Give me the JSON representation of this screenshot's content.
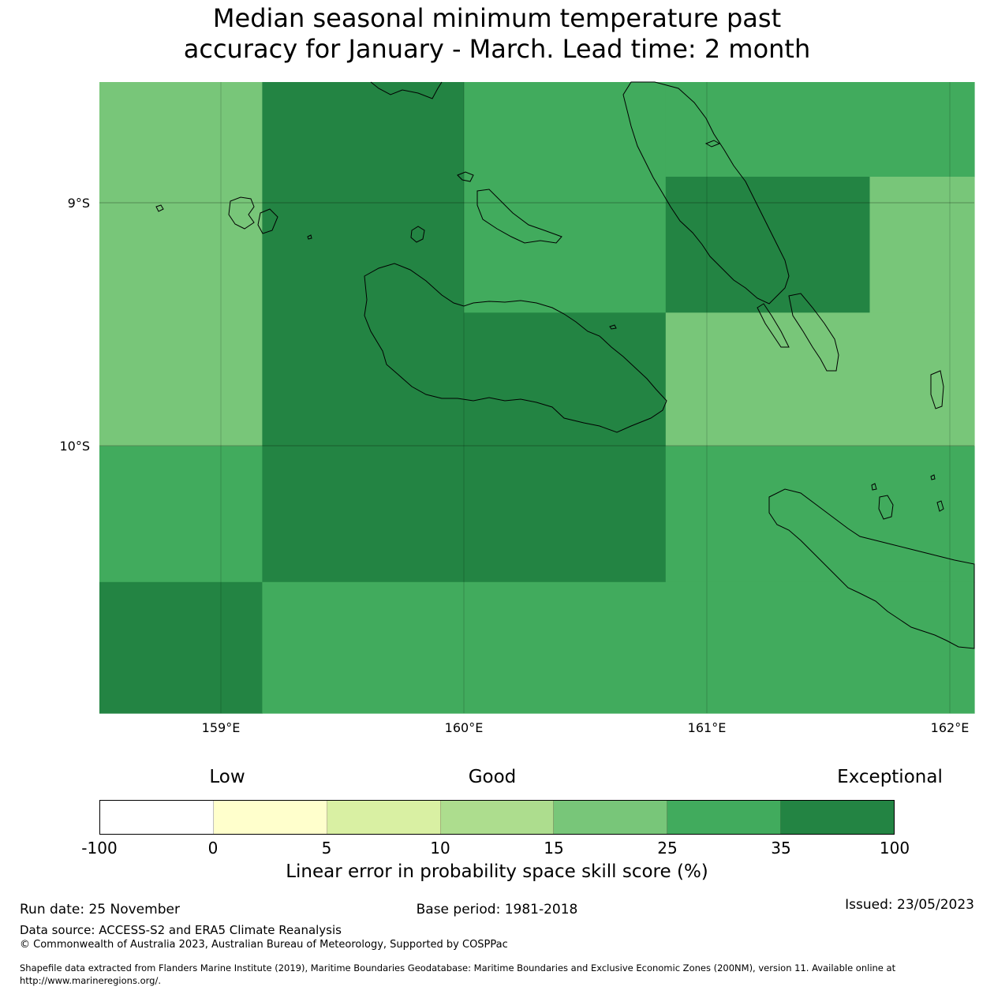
{
  "title": {
    "line1": "Median seasonal minimum temperature past",
    "line2": "accuracy for January - March. Lead time: 2 month"
  },
  "map": {
    "lat_labels": [
      "9°S",
      "10°S"
    ],
    "lon_labels": [
      "159°E",
      "160°E",
      "161°E",
      "162°E"
    ],
    "extent": {
      "lon_min": 158.5,
      "lon_max": 162.1,
      "lat_top": -8.5,
      "lat_bottom": -11.1
    },
    "grid_cells": [
      {
        "lon0": 158.5,
        "lon1": 159.17,
        "lat0": -8.5,
        "lat1": -10.0,
        "category": "15-25"
      },
      {
        "lon0": 159.17,
        "lon1": 160.0,
        "lat0": -8.5,
        "lat1": -10.0,
        "category": "35-100"
      },
      {
        "lon0": 160.0,
        "lon1": 160.83,
        "lat0": -8.5,
        "lat1": -9.45,
        "category": "25-35"
      },
      {
        "lon0": 160.83,
        "lon1": 162.1,
        "lat0": -8.5,
        "lat1": -8.89,
        "category": "25-35"
      },
      {
        "lon0": 160.83,
        "lon1": 161.67,
        "lat0": -8.89,
        "lat1": -9.45,
        "category": "35-100"
      },
      {
        "lon0": 161.67,
        "lon1": 162.1,
        "lat0": -8.89,
        "lat1": -9.45,
        "category": "15-25"
      },
      {
        "lon0": 160.0,
        "lon1": 160.83,
        "lat0": -9.45,
        "lat1": -10.0,
        "category": "35-100"
      },
      {
        "lon0": 160.83,
        "lon1": 162.1,
        "lat0": -9.45,
        "lat1": -10.0,
        "category": "15-25"
      },
      {
        "lon0": 158.5,
        "lon1": 159.17,
        "lat0": -10.0,
        "lat1": -10.56,
        "category": "25-35"
      },
      {
        "lon0": 159.17,
        "lon1": 160.83,
        "lat0": -10.0,
        "lat1": -10.56,
        "category": "35-100"
      },
      {
        "lon0": 160.83,
        "lon1": 162.1,
        "lat0": -10.0,
        "lat1": -10.56,
        "category": "25-35"
      },
      {
        "lon0": 158.5,
        "lon1": 159.17,
        "lat0": -10.56,
        "lat1": -11.1,
        "category": "35-100"
      },
      {
        "lon0": 159.17,
        "lon1": 162.1,
        "lat0": -10.56,
        "lat1": -11.1,
        "category": "25-35"
      }
    ],
    "category_colors": {
      "-100-0": "#ffffff",
      "0-5": "#ffffcc",
      "5-10": "#d9f0a3",
      "10-15": "#addd8e",
      "15-25": "#78c679",
      "25-35": "#41ab5d",
      "35-100": "#238443"
    }
  },
  "legend": {
    "categories": [
      "Low",
      "Good",
      "Exceptional"
    ],
    "colors": [
      "#ffffff",
      "#ffffcc",
      "#d9f0a3",
      "#addd8e",
      "#78c679",
      "#41ab5d",
      "#238443"
    ],
    "ticks": [
      "-100",
      "0",
      "5",
      "10",
      "15",
      "25",
      "35",
      "100"
    ],
    "label": "Linear error in probability space skill score (%)"
  },
  "footer": {
    "run_date": "Run date: 25 November",
    "base_period": "Base period: 1981-2018",
    "issued": "Issued: 23/05/2023",
    "data_source": "Data source: ACCESS-S2 and ERA5 Climate Reanalysis",
    "copyright": "© Commonwealth of Australia 2023, Australian Bureau of Meteorology, Supported by COSPPac",
    "shapefile_line1": "Shapefile data extracted from Flanders Marine Institute (2019), Maritime Boundaries Geodatabase: Maritime Boundaries and Exclusive Economic Zones (200NM), version 11. Available online at",
    "shapefile_line2": "http://www.marineregions.org/."
  }
}
